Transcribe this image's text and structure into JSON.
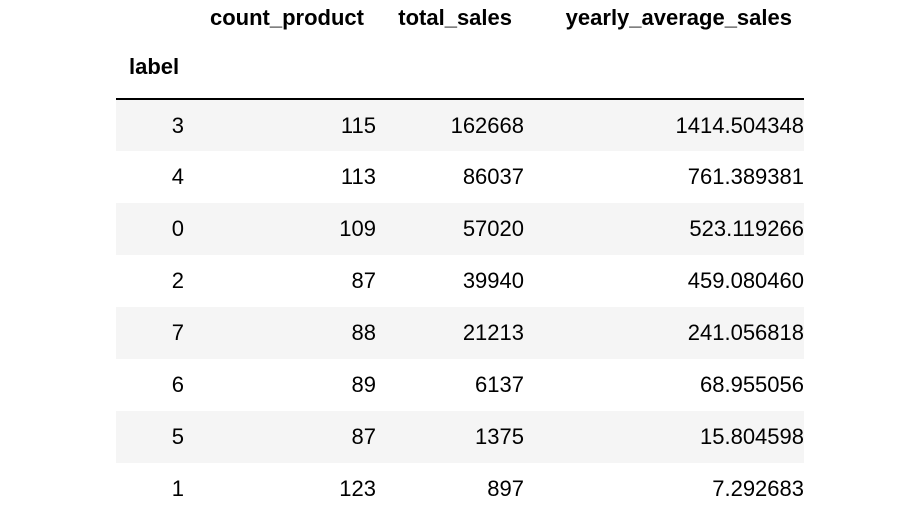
{
  "table": {
    "index_name": "label",
    "columns": [
      "count_product",
      "total_sales",
      "yearly_average_sales"
    ],
    "rows": [
      {
        "label": "3",
        "count_product": "115",
        "total_sales": "162668",
        "yearly_average_sales": "1414.504348"
      },
      {
        "label": "4",
        "count_product": "113",
        "total_sales": "86037",
        "yearly_average_sales": "761.389381"
      },
      {
        "label": "0",
        "count_product": "109",
        "total_sales": "57020",
        "yearly_average_sales": "523.119266"
      },
      {
        "label": "2",
        "count_product": "87",
        "total_sales": "39940",
        "yearly_average_sales": "459.080460"
      },
      {
        "label": "7",
        "count_product": "88",
        "total_sales": "21213",
        "yearly_average_sales": "241.056818"
      },
      {
        "label": "6",
        "count_product": "89",
        "total_sales": "6137",
        "yearly_average_sales": "68.955056"
      },
      {
        "label": "5",
        "count_product": "87",
        "total_sales": "1375",
        "yearly_average_sales": "15.804598"
      },
      {
        "label": "1",
        "count_product": "123",
        "total_sales": "897",
        "yearly_average_sales": "7.292683"
      }
    ]
  }
}
